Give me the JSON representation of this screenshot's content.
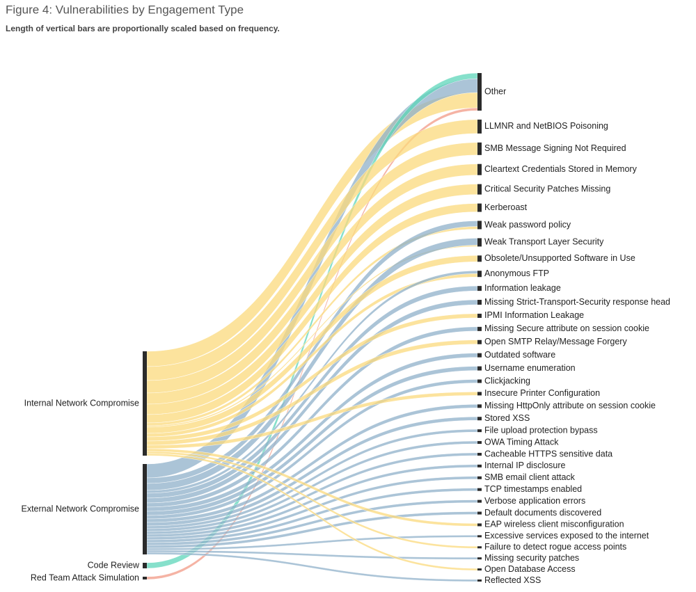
{
  "chart_data": {
    "type": "sankey",
    "title": "Figure 4: Vulnerabilities by Engagement Type",
    "subtitle": "Length of vertical bars are proportionally scaled based on frequency.",
    "sources": [
      {
        "name": "Internal Network Compromise",
        "color": "#fbd97c"
      },
      {
        "name": "External Network Compromise",
        "color": "#8fb0c9"
      },
      {
        "name": "Code Review",
        "color": "#5ed6b9"
      },
      {
        "name": "Red Team Attack Simulation",
        "color": "#f29a85"
      }
    ],
    "targets": [
      {
        "name": "Other",
        "values": [
          22,
          20,
          8,
          4
        ]
      },
      {
        "name": "LLMNR and NetBIOS Poisoning",
        "values": [
          20,
          null,
          null,
          null
        ]
      },
      {
        "name": "SMB Message Signing Not Required",
        "values": [
          18,
          null,
          null,
          null
        ]
      },
      {
        "name": "Cleartext Credentials Stored in Memory",
        "values": [
          16,
          null,
          null,
          null
        ]
      },
      {
        "name": "Critical Security Patches Missing",
        "values": [
          15,
          null,
          null,
          null
        ]
      },
      {
        "name": "Kerberoast",
        "values": [
          12,
          null,
          null,
          null
        ]
      },
      {
        "name": "Weak password policy",
        "values": [
          4,
          8,
          null,
          null
        ]
      },
      {
        "name": "Weak Transport Layer Security",
        "values": [
          2,
          10,
          null,
          null
        ]
      },
      {
        "name": "Obsolete/Unsupported Software in Use",
        "values": [
          9,
          null,
          null,
          null
        ]
      },
      {
        "name": "Anonymous FTP",
        "values": [
          5,
          4,
          null,
          null
        ]
      },
      {
        "name": "Information leakage",
        "values": [
          null,
          7,
          null,
          null
        ]
      },
      {
        "name": "Missing Strict-Transport-Security response head",
        "values": [
          null,
          7,
          null,
          null
        ]
      },
      {
        "name": "IPMI Information Leakage",
        "values": [
          6,
          null,
          null,
          null
        ]
      },
      {
        "name": "Missing Secure attribute on session cookie",
        "values": [
          null,
          6,
          null,
          null
        ]
      },
      {
        "name": "Open SMTP Relay/Message Forgery",
        "values": [
          6,
          null,
          null,
          null
        ]
      },
      {
        "name": "Outdated software",
        "values": [
          null,
          6,
          null,
          null
        ]
      },
      {
        "name": "Username enumeration",
        "values": [
          null,
          6,
          null,
          null
        ]
      },
      {
        "name": "Clickjacking",
        "values": [
          null,
          5,
          null,
          null
        ]
      },
      {
        "name": "Insecure Printer Configuration",
        "values": [
          5,
          null,
          null,
          null
        ]
      },
      {
        "name": "Missing HttpOnly attribute on session cookie",
        "values": [
          null,
          5,
          null,
          null
        ]
      },
      {
        "name": "Stored XSS",
        "values": [
          null,
          5,
          null,
          null
        ]
      },
      {
        "name": "File upload protection bypass",
        "values": [
          null,
          4,
          null,
          null
        ]
      },
      {
        "name": "OWA Timing Attack",
        "values": [
          null,
          4,
          null,
          null
        ]
      },
      {
        "name": "Cacheable HTTPS sensitive data",
        "values": [
          null,
          4,
          null,
          null
        ]
      },
      {
        "name": "Internal IP disclosure",
        "values": [
          null,
          4,
          null,
          null
        ]
      },
      {
        "name": "SMB email client attack",
        "values": [
          null,
          4,
          null,
          null
        ]
      },
      {
        "name": "TCP timestamps enabled",
        "values": [
          null,
          4,
          null,
          null
        ]
      },
      {
        "name": "Verbose application errors",
        "values": [
          null,
          4,
          null,
          null
        ]
      },
      {
        "name": "Default documents discovered",
        "values": [
          null,
          4,
          null,
          null
        ]
      },
      {
        "name": "EAP wireless client misconfiguration",
        "values": [
          4,
          null,
          null,
          null
        ]
      },
      {
        "name": "Excessive services exposed to the internet",
        "values": [
          null,
          3,
          null,
          null
        ]
      },
      {
        "name": "Failure to detect rogue access points",
        "values": [
          3,
          null,
          null,
          null
        ]
      },
      {
        "name": "Missing security patches",
        "values": [
          null,
          3,
          null,
          null
        ]
      },
      {
        "name": "Open Database Access",
        "values": [
          3,
          null,
          null,
          null
        ]
      },
      {
        "name": "Reflected XSS",
        "values": [
          null,
          3,
          null,
          null
        ]
      }
    ]
  }
}
